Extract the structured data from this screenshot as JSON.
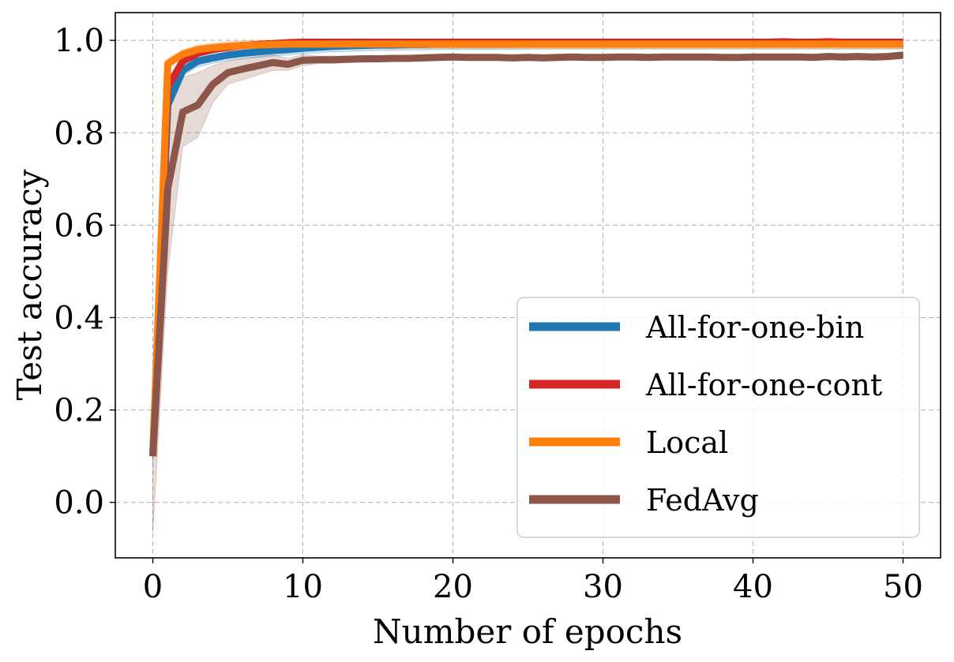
{
  "chart_data": {
    "type": "line",
    "title": "",
    "xlabel": "Number of epochs",
    "ylabel": "Test accuracy",
    "xlim": [
      -2.5,
      52.5
    ],
    "ylim": [
      -0.12,
      1.06
    ],
    "xticks": [
      0,
      10,
      20,
      30,
      40,
      50
    ],
    "yticks": [
      0.0,
      0.2,
      0.4,
      0.6,
      0.8,
      1.0
    ],
    "grid": true,
    "legend_position": "lower-right",
    "x": [
      0,
      1,
      2,
      3,
      4,
      5,
      6,
      7,
      8,
      9,
      10,
      11,
      12,
      13,
      14,
      15,
      16,
      17,
      18,
      19,
      20,
      21,
      22,
      23,
      24,
      25,
      26,
      27,
      28,
      29,
      30,
      31,
      32,
      33,
      34,
      35,
      36,
      37,
      38,
      39,
      40,
      41,
      42,
      43,
      44,
      45,
      46,
      47,
      48,
      49,
      50
    ],
    "series": [
      {
        "name": "All-for-one-bin",
        "color": "#1f77b4",
        "values": [
          0.1,
          0.86,
          0.935,
          0.955,
          0.962,
          0.968,
          0.972,
          0.975,
          0.978,
          0.98,
          0.983,
          0.985,
          0.987,
          0.988,
          0.989,
          0.99,
          0.99,
          0.991,
          0.991,
          0.992,
          0.992,
          0.992,
          0.992,
          0.992,
          0.992,
          0.993,
          0.993,
          0.993,
          0.993,
          0.993,
          0.993,
          0.993,
          0.993,
          0.993,
          0.993,
          0.993,
          0.993,
          0.993,
          0.993,
          0.993,
          0.993,
          0.993,
          0.993,
          0.993,
          0.993,
          0.993,
          0.993,
          0.993,
          0.993,
          0.993,
          0.993
        ],
        "band": 0.012
      },
      {
        "name": "All-for-one-cont",
        "color": "#d62728",
        "values": [
          0.1,
          0.9,
          0.955,
          0.972,
          0.98,
          0.985,
          0.989,
          0.991,
          0.993,
          0.995,
          0.996,
          0.996,
          0.996,
          0.996,
          0.996,
          0.996,
          0.996,
          0.996,
          0.996,
          0.996,
          0.996,
          0.996,
          0.996,
          0.996,
          0.996,
          0.996,
          0.996,
          0.996,
          0.996,
          0.996,
          0.996,
          0.996,
          0.996,
          0.996,
          0.996,
          0.996,
          0.996,
          0.996,
          0.996,
          0.996,
          0.996,
          0.996,
          0.997,
          0.996,
          0.996,
          0.997,
          0.996,
          0.996,
          0.996,
          0.996,
          0.996
        ],
        "band": 0.006
      },
      {
        "name": "Local",
        "color": "#ff7f0e",
        "values": [
          0.1,
          0.95,
          0.97,
          0.98,
          0.984,
          0.987,
          0.989,
          0.99,
          0.991,
          0.992,
          0.992,
          0.992,
          0.992,
          0.992,
          0.992,
          0.992,
          0.992,
          0.992,
          0.992,
          0.992,
          0.992,
          0.992,
          0.992,
          0.992,
          0.992,
          0.992,
          0.992,
          0.992,
          0.992,
          0.992,
          0.992,
          0.992,
          0.992,
          0.992,
          0.992,
          0.992,
          0.992,
          0.992,
          0.992,
          0.992,
          0.992,
          0.992,
          0.992,
          0.992,
          0.992,
          0.992,
          0.992,
          0.992,
          0.992,
          0.992,
          0.992
        ],
        "band": 0.01
      },
      {
        "name": "FedAvg",
        "color": "#8c564b",
        "values": [
          0.1,
          0.68,
          0.845,
          0.86,
          0.905,
          0.93,
          0.938,
          0.945,
          0.952,
          0.948,
          0.957,
          0.958,
          0.958,
          0.959,
          0.96,
          0.96,
          0.961,
          0.961,
          0.962,
          0.963,
          0.964,
          0.963,
          0.963,
          0.963,
          0.962,
          0.963,
          0.962,
          0.963,
          0.964,
          0.963,
          0.963,
          0.964,
          0.964,
          0.963,
          0.964,
          0.964,
          0.964,
          0.964,
          0.963,
          0.963,
          0.964,
          0.964,
          0.964,
          0.964,
          0.963,
          0.965,
          0.964,
          0.965,
          0.964,
          0.965,
          0.968
        ],
        "band_lower": [
          -0.07,
          0.5,
          0.77,
          0.79,
          0.865,
          0.905,
          0.915,
          0.925,
          0.935,
          0.935,
          0.945,
          0.95,
          0.95,
          0.952,
          0.953,
          0.954,
          0.954,
          0.955,
          0.955,
          0.956,
          0.957,
          0.957,
          0.957,
          0.957,
          0.956,
          0.957,
          0.956,
          0.957,
          0.958,
          0.957,
          0.957,
          0.958,
          0.958,
          0.957,
          0.958,
          0.958,
          0.958,
          0.958,
          0.957,
          0.957,
          0.958,
          0.958,
          0.958,
          0.958,
          0.957,
          0.958,
          0.957,
          0.958,
          0.957,
          0.958,
          0.96
        ],
        "band_upper": [
          0.27,
          0.86,
          0.92,
          0.93,
          0.945,
          0.955,
          0.961,
          0.965,
          0.969,
          0.961,
          0.969,
          0.966,
          0.966,
          0.966,
          0.967,
          0.966,
          0.968,
          0.967,
          0.969,
          0.97,
          0.971,
          0.969,
          0.969,
          0.969,
          0.968,
          0.969,
          0.968,
          0.969,
          0.97,
          0.969,
          0.969,
          0.97,
          0.97,
          0.969,
          0.97,
          0.97,
          0.97,
          0.97,
          0.969,
          0.969,
          0.97,
          0.97,
          0.97,
          0.97,
          0.969,
          0.972,
          0.971,
          0.972,
          0.971,
          0.972,
          0.976
        ]
      }
    ]
  }
}
